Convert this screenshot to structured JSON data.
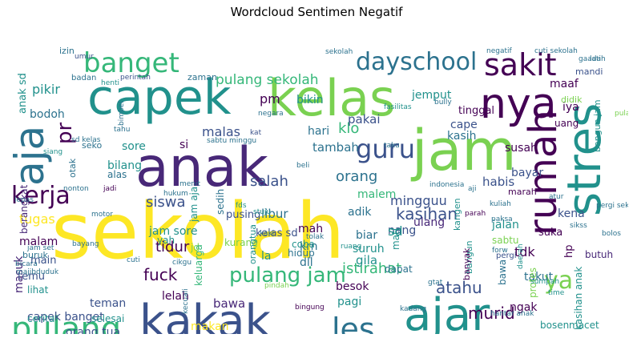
{
  "title": "Wordcloud Sentimen Negatif",
  "palette": [
    "#440154",
    "#3b528b",
    "#21918c",
    "#5ec962",
    "#fde725",
    "#2c728e",
    "#7ad151",
    "#31688e",
    "#35b779",
    "#482878"
  ],
  "words": [
    {
      "text": "sekolah"
    },
    {
      "text": "anak"
    },
    {
      "text": "jam"
    },
    {
      "text": "kakak"
    },
    {
      "text": "capek"
    },
    {
      "text": "kelas"
    },
    {
      "text": "ajar"
    },
    {
      "text": "nya"
    },
    {
      "text": "aja"
    },
    {
      "text": "stres"
    },
    {
      "text": "rumah"
    },
    {
      "text": "sakit"
    },
    {
      "text": "banget"
    },
    {
      "text": "dayschool"
    },
    {
      "text": "pulang"
    },
    {
      "text": "les"
    },
    {
      "text": "kerja"
    },
    {
      "text": "guru"
    },
    {
      "text": "pulang jam"
    },
    {
      "text": "ya"
    },
    {
      "text": "pulang sekolah"
    },
    {
      "text": "kasihan"
    },
    {
      "text": "atahu"
    },
    {
      "text": "istirahat"
    },
    {
      "text": "murid"
    },
    {
      "text": "fuck"
    },
    {
      "text": "orang"
    },
    {
      "text": "siswa"
    },
    {
      "text": "salah"
    },
    {
      "text": "klo"
    },
    {
      "text": "malas"
    },
    {
      "text": "tidur"
    },
    {
      "text": "anak sd"
    },
    {
      "text": "pr"
    },
    {
      "text": "mingguu"
    },
    {
      "text": "pm"
    },
    {
      "text": "bikin"
    },
    {
      "text": "jemput"
    },
    {
      "text": "maaf"
    },
    {
      "text": "iya"
    },
    {
      "text": "cape"
    },
    {
      "text": "tinggal"
    },
    {
      "text": "uang"
    },
    {
      "text": "pikir"
    },
    {
      "text": "bodoh"
    },
    {
      "text": "sore"
    },
    {
      "text": "si"
    },
    {
      "text": "bilang"
    },
    {
      "text": "hari"
    },
    {
      "text": "pakai"
    },
    {
      "text": "tambah"
    },
    {
      "text": "kasih"
    },
    {
      "text": "susah"
    },
    {
      "text": "habis"
    },
    {
      "text": "bayar"
    },
    {
      "text": "malem"
    },
    {
      "text": "libur"
    },
    {
      "text": "adik"
    },
    {
      "text": "ulang"
    },
    {
      "text": "nang"
    },
    {
      "text": "jalan"
    },
    {
      "text": "kena"
    },
    {
      "text": "sabtu"
    },
    {
      "text": "suka"
    },
    {
      "text": "jam sore"
    },
    {
      "text": "kelas sd"
    },
    {
      "text": "tugas"
    },
    {
      "text": "malam"
    },
    {
      "text": "masuk"
    },
    {
      "text": "main"
    },
    {
      "text": "temu"
    },
    {
      "text": "lihat"
    },
    {
      "text": "capek banget"
    },
    {
      "text": "berat"
    },
    {
      "text": "teman"
    },
    {
      "text": "orang tua"
    },
    {
      "text": "lelah"
    },
    {
      "text": "bawa"
    },
    {
      "text": "makan"
    },
    {
      "text": "besok"
    },
    {
      "text": "pagi"
    },
    {
      "text": "ngak"
    },
    {
      "text": "langsung"
    },
    {
      "text": "masuk sekolah"
    },
    {
      "text": "bosen"
    },
    {
      "text": "takut"
    },
    {
      "text": "bawa"
    },
    {
      "text": "tdk"
    },
    {
      "text": "hp"
    },
    {
      "text": "butuh"
    },
    {
      "text": "protes"
    },
    {
      "text": "kasihan anak"
    },
    {
      "text": "gila"
    },
    {
      "text": "dapat"
    },
    {
      "text": "suruh"
    },
    {
      "text": "biar"
    },
    {
      "text": "krn"
    },
    {
      "text": "mah"
    },
    {
      "text": "dll"
    },
    {
      "text": "sd"
    },
    {
      "text": "mati"
    },
    {
      "text": "la"
    },
    {
      "text": "hidup"
    },
    {
      "text": "coba"
    },
    {
      "text": "pusing"
    },
    {
      "text": "kurang"
    },
    {
      "text": "yah"
    },
    {
      "text": "jd"
    },
    {
      "text": "keluarga"
    },
    {
      "text": "berangkat"
    },
    {
      "text": "buruk"
    },
    {
      "text": "alas"
    },
    {
      "text": "jam aja"
    },
    {
      "text": "orangtua"
    },
    {
      "text": "sedih"
    },
    {
      "text": "zaman"
    },
    {
      "text": "seko"
    },
    {
      "text": "otak"
    },
    {
      "text": "mandi"
    },
    {
      "text": "didik"
    },
    {
      "text": "marah"
    },
    {
      "text": "kangen"
    },
    {
      "text": "bangun"
    },
    {
      "text": "pergi"
    },
    {
      "text": "banyak"
    },
    {
      "text": "izin"
    },
    {
      "text": "badan"
    },
    {
      "text": "cuti sekolah"
    },
    {
      "text": "umur"
    },
    {
      "text": "perintah"
    },
    {
      "text": "siang"
    },
    {
      "text": "henti"
    },
    {
      "text": "bimbel"
    },
    {
      "text": "negara"
    },
    {
      "text": "tahu"
    },
    {
      "text": "sabtu minggu"
    },
    {
      "text": "fasilitas"
    },
    {
      "text": "bully"
    },
    {
      "text": "sekolah"
    },
    {
      "text": "negatif"
    },
    {
      "text": "gaada"
    },
    {
      "text": "bangun jam"
    },
    {
      "text": "pulang sore"
    },
    {
      "text": "nonton"
    },
    {
      "text": "jadi"
    },
    {
      "text": "hukum"
    },
    {
      "text": "menit"
    },
    {
      "text": "indonesia"
    },
    {
      "text": "pergi sekolah"
    },
    {
      "text": "bolos"
    },
    {
      "text": "atur"
    },
    {
      "text": "kat"
    },
    {
      "text": "beli"
    },
    {
      "text": "fds"
    },
    {
      "text": "stuju"
    },
    {
      "text": "ruang"
    },
    {
      "text": "parah"
    },
    {
      "text": "kuliah"
    },
    {
      "text": "paksa"
    },
    {
      "text": "sikss"
    },
    {
      "text": "bayang"
    },
    {
      "text": "jam set"
    },
    {
      "text": "tolak"
    },
    {
      "text": "kaki"
    },
    {
      "text": "cikgu"
    },
    {
      "text": "forw"
    },
    {
      "text": "daerah"
    },
    {
      "text": "pindah"
    },
    {
      "text": "gtat"
    },
    {
      "text": "time"
    },
    {
      "text": "sumpah"
    },
    {
      "text": "bicara"
    },
    {
      "text": "cerita"
    },
    {
      "text": "selesai"
    },
    {
      "text": "kecuali"
    },
    {
      "text": "bingung"
    },
    {
      "text": "hantar anak"
    },
    {
      "text": "macet"
    },
    {
      "text": "kadang"
    },
    {
      "text": "cuti"
    },
    {
      "text": "majibduduk"
    },
    {
      "text": "lepas"
    },
    {
      "text": "motor"
    },
    {
      "text": "aji"
    },
    {
      "text": "sd kelas"
    },
    {
      "text": "taku"
    },
    {
      "text": "latih"
    }
  ]
}
